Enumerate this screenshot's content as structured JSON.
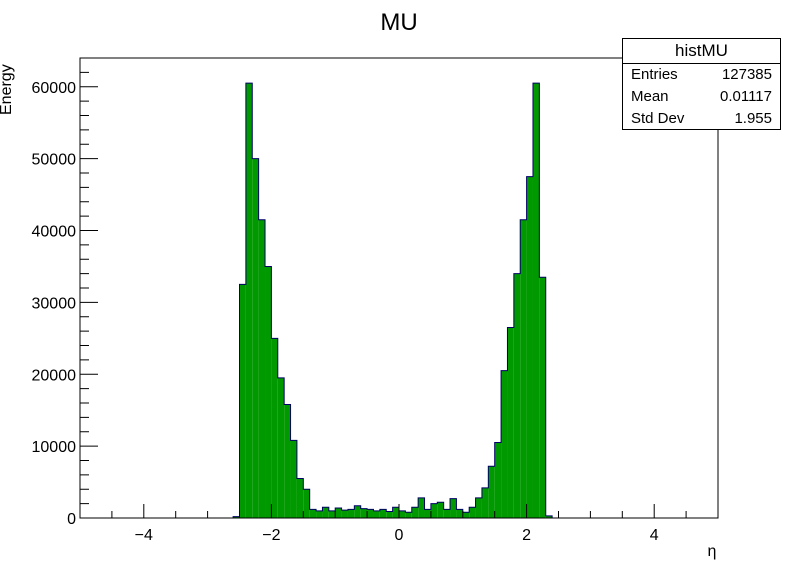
{
  "chart_data": {
    "type": "bar",
    "title": "MU",
    "xlabel": "η",
    "ylabel": "Energy",
    "xlim": [
      -5,
      5
    ],
    "ylim": [
      0,
      64000
    ],
    "x_ticks": [
      -4,
      -2,
      0,
      2,
      4
    ],
    "x_tick_labels": [
      "−4",
      "−2",
      "0",
      "2",
      "4"
    ],
    "y_ticks": [
      0,
      10000,
      20000,
      30000,
      40000,
      50000,
      60000
    ],
    "y_tick_labels": [
      "0",
      "10000",
      "20000",
      "30000",
      "40000",
      "50000",
      "60000"
    ],
    "bin_width": 0.1,
    "bin_low_edges": [
      -2.6,
      -2.5,
      -2.4,
      -2.3,
      -2.2,
      -2.1,
      -2.0,
      -1.9,
      -1.8,
      -1.7,
      -1.6,
      -1.5,
      -1.4,
      -1.3,
      -1.2,
      -1.1,
      -1.0,
      -0.9,
      -0.8,
      -0.7,
      -0.6,
      -0.5,
      -0.4,
      -0.3,
      -0.2,
      -0.1,
      0.0,
      0.1,
      0.2,
      0.3,
      0.4,
      0.5,
      0.6,
      0.7,
      0.8,
      0.9,
      1.0,
      1.1,
      1.2,
      1.3,
      1.4,
      1.5,
      1.6,
      1.7,
      1.8,
      1.9,
      2.0,
      2.1,
      2.2,
      2.3,
      2.4,
      2.5
    ],
    "values": [
      200,
      32500,
      60500,
      50000,
      41500,
      35000,
      25000,
      19500,
      15800,
      10800,
      5500,
      4000,
      1200,
      1000,
      1500,
      1000,
      1400,
      1100,
      1200,
      1700,
      1300,
      1200,
      1000,
      1200,
      900,
      1500,
      1000,
      800,
      1500,
      2800,
      1200,
      2000,
      2200,
      1200,
      2700,
      1200,
      800,
      1500,
      2800,
      4200,
      7200,
      10500,
      20500,
      26500,
      34000,
      41500,
      47500,
      60500,
      33500,
      300,
      0,
      0
    ],
    "bar_color": "#009900",
    "stats": {
      "name": "histMU",
      "rows": [
        {
          "label": "Entries",
          "value": "127385"
        },
        {
          "label": "Mean",
          "value": "0.01117"
        },
        {
          "label": "Std Dev",
          "value": "1.955"
        }
      ]
    }
  }
}
